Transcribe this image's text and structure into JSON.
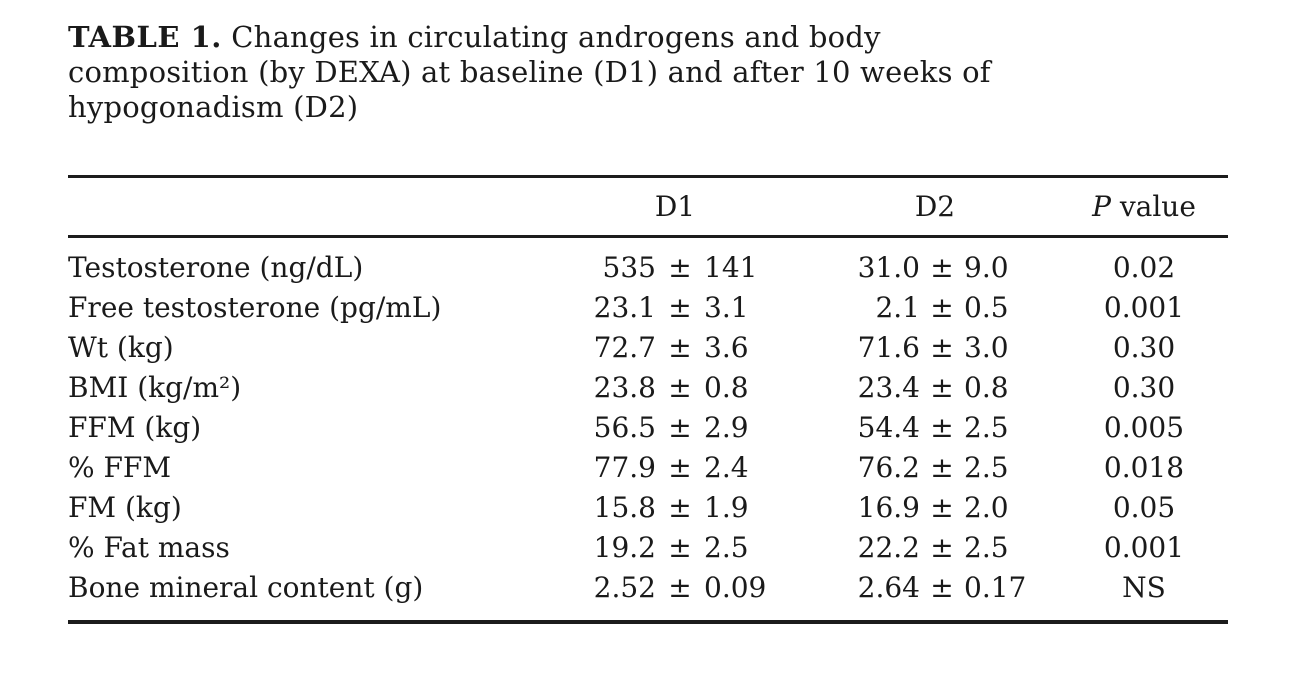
{
  "caption": {
    "bold_label": "TABLE 1.",
    "line1_rest": "Changes in circulating androgens and body",
    "line2": "composition (by DEXA) at baseline (D1) and after 10 weeks of",
    "line3": "hypogonadism (D2)"
  },
  "table": {
    "plus_minus": "±",
    "columns": {
      "row_header": "",
      "d1": "D1",
      "d2": "D2",
      "p_italic": "P",
      "p_rest": " value"
    },
    "rows": [
      {
        "label": "Testosterone (ng/dL)",
        "d1_mean": "535",
        "d1_sd": "141",
        "d2_mean": "31.0",
        "d2_sd": "9.0",
        "p": "0.02"
      },
      {
        "label": "Free testosterone (pg/mL)",
        "d1_mean": "23.1",
        "d1_sd": "3.1",
        "d2_mean": "2.1",
        "d2_sd": "0.5",
        "p": "0.001"
      },
      {
        "label": "Wt (kg)",
        "d1_mean": "72.7",
        "d1_sd": "3.6",
        "d2_mean": "71.6",
        "d2_sd": "3.0",
        "p": "0.30"
      },
      {
        "label": "BMI (kg/m²)",
        "d1_mean": "23.8",
        "d1_sd": "0.8",
        "d2_mean": "23.4",
        "d2_sd": "0.8",
        "p": "0.30"
      },
      {
        "label": "FFM (kg)",
        "d1_mean": "56.5",
        "d1_sd": "2.9",
        "d2_mean": "54.4",
        "d2_sd": "2.5",
        "p": "0.005"
      },
      {
        "label": "% FFM",
        "d1_mean": "77.9",
        "d1_sd": "2.4",
        "d2_mean": "76.2",
        "d2_sd": "2.5",
        "p": "0.018"
      },
      {
        "label": "FM (kg)",
        "d1_mean": "15.8",
        "d1_sd": "1.9",
        "d2_mean": "16.9",
        "d2_sd": "2.0",
        "p": "0.05"
      },
      {
        "label": "% Fat mass",
        "d1_mean": "19.2",
        "d1_sd": "2.5",
        "d2_mean": "22.2",
        "d2_sd": "2.5",
        "p": "0.001"
      },
      {
        "label": "Bone mineral content (g)",
        "d1_mean": "2.52",
        "d1_sd": "0.09",
        "d2_mean": "2.64",
        "d2_sd": "0.17",
        "p": "NS"
      }
    ]
  }
}
